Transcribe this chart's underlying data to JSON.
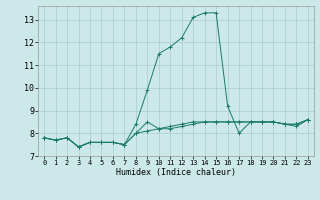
{
  "title": "",
  "xlabel": "Humidex (Indice chaleur)",
  "bg_color": "#cce8e8",
  "grid_color": "#aacccc",
  "line_color": "#1a7a6a",
  "xlim": [
    -0.5,
    23.5
  ],
  "ylim": [
    7.0,
    13.6
  ],
  "xticks": [
    0,
    1,
    2,
    3,
    4,
    5,
    6,
    7,
    8,
    9,
    10,
    11,
    12,
    13,
    14,
    15,
    16,
    17,
    18,
    19,
    20,
    21,
    22,
    23
  ],
  "yticks": [
    7,
    8,
    9,
    10,
    11,
    12,
    13
  ],
  "line1_x": [
    0,
    1,
    2,
    3,
    4,
    5,
    6,
    7,
    8,
    9,
    10,
    11,
    12,
    13,
    14,
    15,
    16,
    17,
    18,
    19,
    20,
    21,
    22,
    23
  ],
  "line1_y": [
    7.8,
    7.7,
    7.8,
    7.4,
    7.6,
    7.6,
    7.6,
    7.5,
    8.0,
    8.5,
    8.2,
    8.3,
    8.4,
    8.5,
    8.5,
    8.5,
    8.5,
    8.5,
    8.5,
    8.5,
    8.5,
    8.4,
    8.4,
    8.6
  ],
  "line2_x": [
    0,
    1,
    2,
    3,
    4,
    5,
    6,
    7,
    8,
    9,
    10,
    11,
    12,
    13,
    14,
    15,
    16,
    17,
    18,
    19,
    20,
    21,
    22,
    23
  ],
  "line2_y": [
    7.8,
    7.7,
    7.8,
    7.4,
    7.6,
    7.6,
    7.6,
    7.5,
    8.4,
    9.9,
    11.5,
    11.8,
    12.2,
    13.1,
    13.3,
    13.3,
    9.2,
    8.0,
    8.5,
    8.5,
    8.5,
    8.4,
    8.3,
    8.6
  ],
  "line3_x": [
    0,
    1,
    2,
    3,
    4,
    5,
    6,
    7,
    8,
    9,
    10,
    11,
    12,
    13,
    14,
    15,
    16,
    17,
    18,
    19,
    20,
    21,
    22,
    23
  ],
  "line3_y": [
    7.8,
    7.7,
    7.8,
    7.4,
    7.6,
    7.6,
    7.6,
    7.5,
    8.0,
    8.1,
    8.2,
    8.2,
    8.3,
    8.4,
    8.5,
    8.5,
    8.5,
    8.5,
    8.5,
    8.5,
    8.5,
    8.4,
    8.4,
    8.6
  ]
}
